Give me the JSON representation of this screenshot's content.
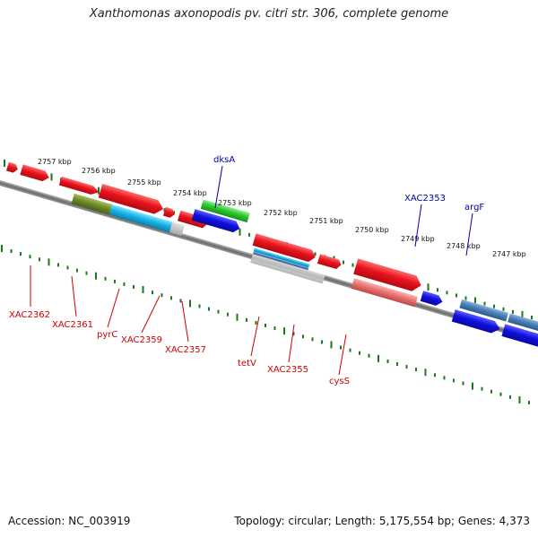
{
  "title": "Xanthomonas axonopodis pv. citri str. 306, complete genome",
  "footer": {
    "accession": "Accession: NC_003919",
    "summary": "Topology: circular; Length: 5,175,554 bp; Genes: 4,373"
  },
  "kbp_labels": [
    "2757 kbp",
    "2756 kbp",
    "2755 kbp",
    "2754 kbp",
    "2753 kbp",
    "2752 kbp",
    "2751 kbp",
    "2750 kbp",
    "2749 kbp",
    "2748 kbp",
    "2747 kbp"
  ],
  "gene_labels_top": [
    "dksA",
    "XAC2353",
    "argF"
  ],
  "gene_labels_bottom": [
    "XAC2362",
    "XAC2361",
    "pyrC",
    "XAC2359",
    "XAC2357",
    "tetV",
    "XAC2355",
    "cysS"
  ],
  "colors": {
    "forward_red": "#e8141e",
    "reverse_red": "#e8141e",
    "blue": "#1010e0",
    "green": "#2ec82e",
    "steelblue": "#4a7fb8",
    "cyan": "#19b4e6",
    "olive": "#6e8c2a",
    "salmon": "#e87474",
    "tick_green": "#1a7a1a",
    "label_red": "#cc0000",
    "label_blue": "#0000aa"
  }
}
